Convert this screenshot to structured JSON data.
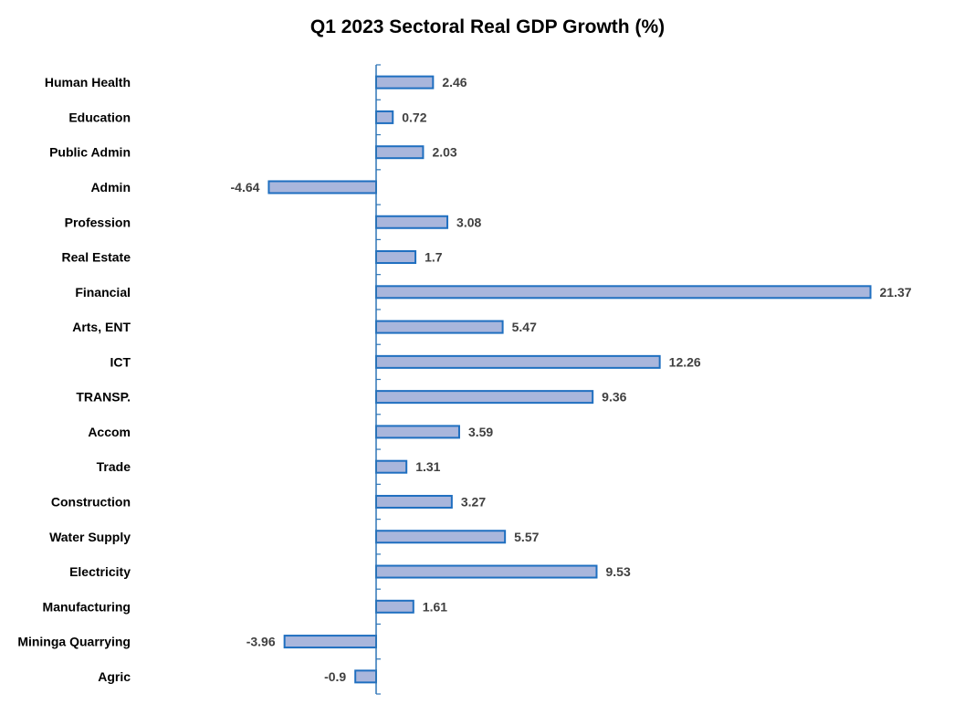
{
  "chart_data": {
    "type": "bar",
    "orientation": "horizontal",
    "title": "Q1 2023 Sectoral Real GDP Growth (%)",
    "xlabel": "",
    "ylabel": "",
    "categories": [
      "Human Health",
      "Education",
      "Public Admin",
      "Admin",
      "Profession",
      "Real Estate",
      "Financial",
      "Arts, ENT",
      "ICT",
      "TRANSP.",
      "Accom",
      "Trade",
      "Construction",
      "Water Supply",
      "Electricity",
      "Manufacturing",
      "Mininga Quarrying",
      "Agric"
    ],
    "values": [
      2.46,
      0.72,
      2.03,
      -4.64,
      3.08,
      1.7,
      21.37,
      5.47,
      12.26,
      9.36,
      3.59,
      1.31,
      3.27,
      5.57,
      9.53,
      1.61,
      -3.96,
      -0.9
    ],
    "value_labels": [
      "2.46",
      "0.72",
      "2.03",
      "-4.64",
      "3.08",
      "1.7",
      "21.37",
      "5.47",
      "12.26",
      "9.36",
      "3.59",
      "1.31",
      "3.27",
      "5.57",
      "9.53",
      "1.61",
      "-3.96",
      "-0.9"
    ],
    "grid": false,
    "legend": "none",
    "colors": {
      "bar_fill": "#a9b6dc",
      "bar_stroke": "#1f6fc0",
      "axis": "#2e75b6",
      "value_text": "#404040"
    }
  }
}
